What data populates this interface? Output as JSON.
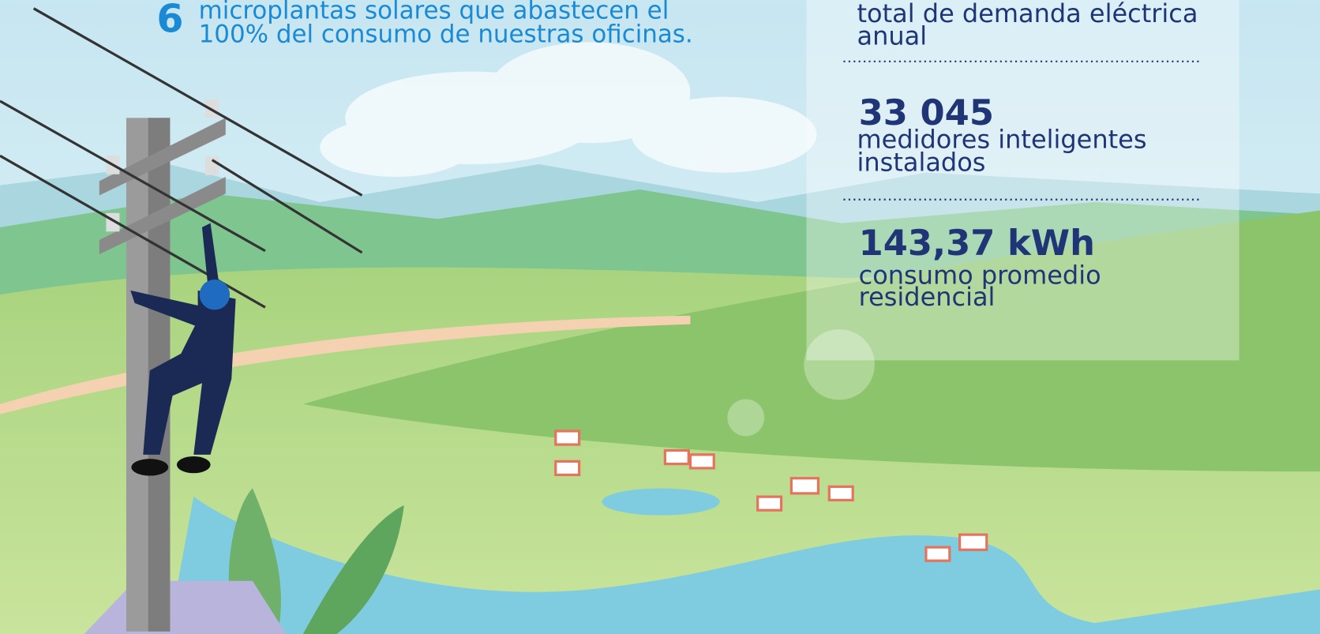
{
  "intro": {
    "number": "6",
    "lines": [
      "microplantas solares que abastecen el",
      "100% del consumo de nuestras oficinas."
    ]
  },
  "panel": {
    "stats": [
      {
        "lines": [
          "total de demanda eléctrica",
          "anual"
        ]
      },
      {
        "number": "33 045",
        "lines": [
          "medidores inteligentes",
          "instalados"
        ]
      },
      {
        "number": "143,37 kWh",
        "lines": [
          "consumo promedio",
          "residencial"
        ]
      }
    ]
  }
}
